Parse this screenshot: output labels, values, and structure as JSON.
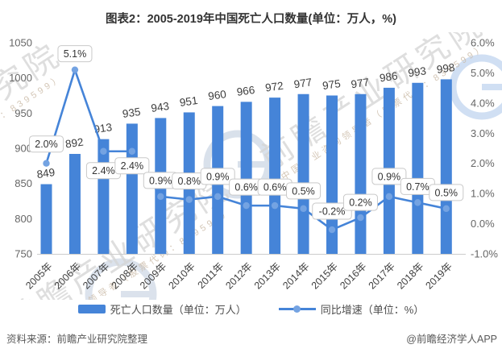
{
  "title": "图表2：2005-2019年中国死亡人口数量(单位：万人，%)",
  "chart_data": {
    "type": "bar+line",
    "categories": [
      "2005年",
      "2006年",
      "2007年",
      "2008年",
      "2009年",
      "2010年",
      "2011年",
      "2012年",
      "2013年",
      "2014年",
      "2015年",
      "2016年",
      "2017年",
      "2018年",
      "2019年"
    ],
    "series": [
      {
        "name": "死亡人口数量（单位：万人）",
        "type": "bar",
        "values": [
          849,
          892,
          913,
          935,
          943,
          951,
          960,
          966,
          972,
          977,
          975,
          977,
          986,
          993,
          998
        ]
      },
      {
        "name": "同比增速（单位：%）",
        "type": "line",
        "values": [
          2.0,
          5.1,
          2.4,
          2.4,
          0.9,
          0.8,
          0.9,
          0.6,
          0.6,
          0.5,
          -0.2,
          0.2,
          0.9,
          0.7,
          0.5
        ]
      }
    ],
    "left_axis": {
      "min": 750,
      "max": 1050,
      "ticks": [
        1050,
        1000,
        950,
        900,
        850,
        800,
        750
      ]
    },
    "right_axis": {
      "min": -1.0,
      "max": 6.0,
      "tick_values": [
        6,
        5,
        4,
        3,
        2,
        1,
        0,
        -1
      ],
      "tick_labels": [
        "6.0%",
        "5.0%",
        "4.0%",
        "3.0%",
        "2.0%",
        "1.0%",
        "0.0%",
        "-1.0%"
      ]
    },
    "line_label_dy": [
      -24,
      -20,
      24,
      18,
      -20,
      -23,
      -25,
      -23,
      -23,
      -22,
      -23,
      -19,
      -25,
      -20,
      -20
    ],
    "grid": false,
    "legend_position": "bottom"
  },
  "colors": {
    "bar": "#4584D8",
    "line": "#4584D8",
    "dot": "#74A3E2",
    "axis_text": "#666666",
    "x_label_text": "#404040",
    "bar_label_text": "#3d3d3d",
    "box_border": "#c9c9c9",
    "box_text": "#333333",
    "axis_line": "#cccccc",
    "watermark_gray": "#d6d6d6",
    "watermark_tan": "#c9b8a4",
    "watermark_ring": "#d3dce8",
    "watermark_ring_blue": "#cBdcf2"
  },
  "legend": {
    "bar_label": "死亡人口数量（单位：万人）",
    "line_label": "同比增速（单位：%）"
  },
  "footer": {
    "source": "资料来源：前瞻产业研究院整理",
    "credit": "@前瞻经济学人APP"
  },
  "watermark": {
    "brand": "前瞻产业研究院",
    "subtext": "中国产业咨询领导者（股票代码：839599）"
  }
}
